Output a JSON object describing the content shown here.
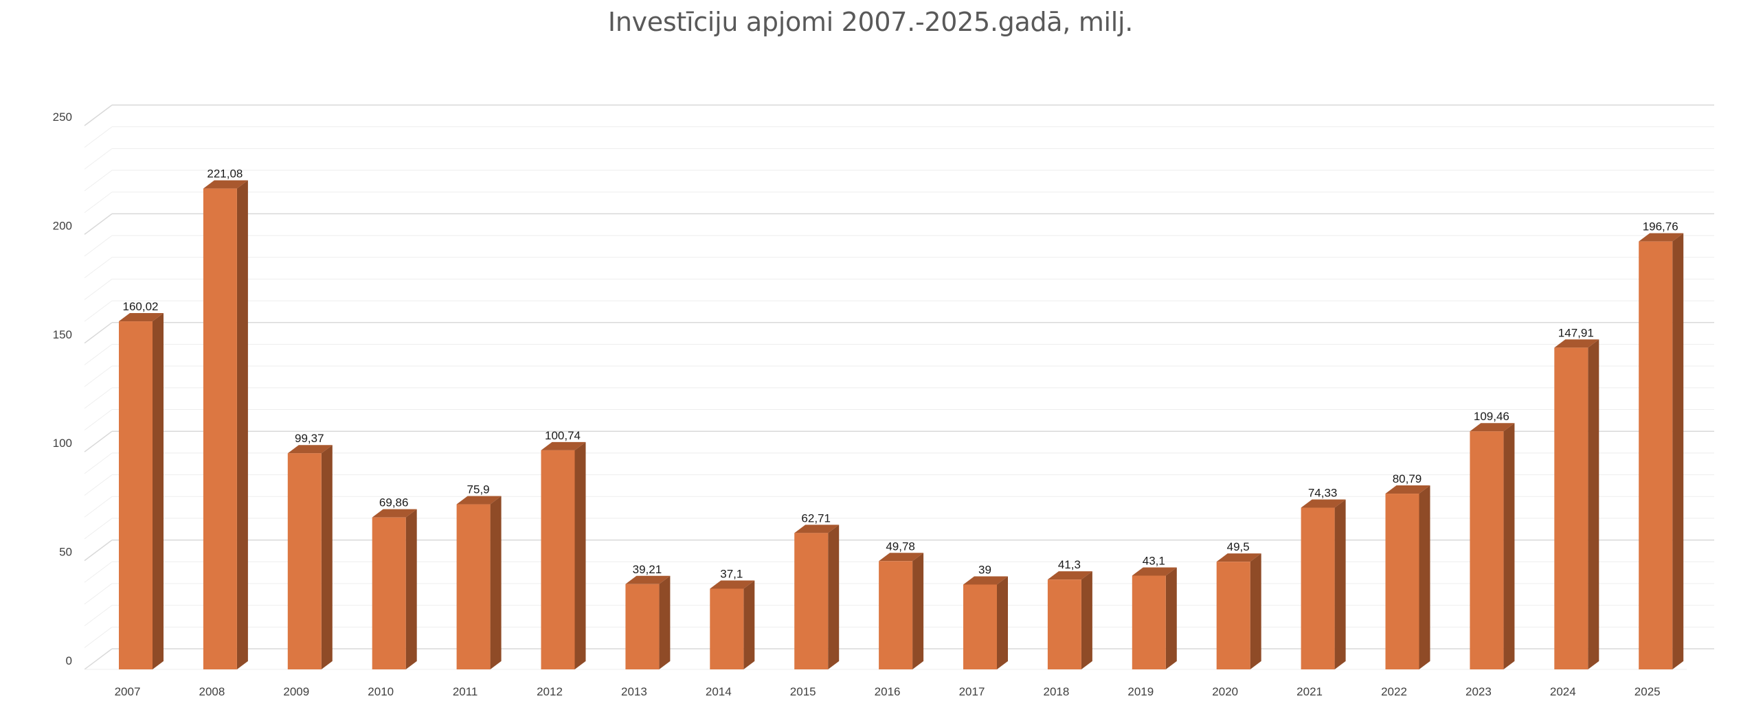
{
  "chart_data": {
    "type": "bar",
    "title": "Investīciju apjomi 2007.-2025.gadā, milj.",
    "xlabel": "",
    "ylabel": "",
    "categories": [
      "2007",
      "2008",
      "2009",
      "2010",
      "2011",
      "2012",
      "2013",
      "2014",
      "2015",
      "2016",
      "2017",
      "2018",
      "2019",
      "2020",
      "2021",
      "2022",
      "2023",
      "2024",
      "2025"
    ],
    "values": [
      160.02,
      221.08,
      99.37,
      69.86,
      75.9,
      100.74,
      39.21,
      37.1,
      62.71,
      49.78,
      39,
      41.3,
      43.1,
      49.5,
      74.33,
      80.79,
      109.46,
      147.91,
      196.76
    ],
    "data_labels": [
      "160,02",
      "221,08",
      "99,37",
      "69,86",
      "75,9",
      "100,74",
      "39,21",
      "37,1",
      "62,71",
      "49,78",
      "39",
      "41,3",
      "43,1",
      "49,5",
      "74,33",
      "80,79",
      "109,46",
      "147,91",
      "196,76"
    ],
    "y_ticks": [
      0,
      50,
      100,
      150,
      200,
      250
    ],
    "y_tick_labels": [
      "0",
      "50",
      "100",
      "150",
      "200",
      "250"
    ],
    "ylim": [
      0,
      260
    ],
    "grid": true,
    "legend": "none",
    "colors": {
      "bar_front": "#DC7742",
      "bar_side": "#8F4B27",
      "bar_top": "#A9582E",
      "major_grid": "#D9D9D9",
      "minor_grid": "#EEEEEE"
    }
  }
}
